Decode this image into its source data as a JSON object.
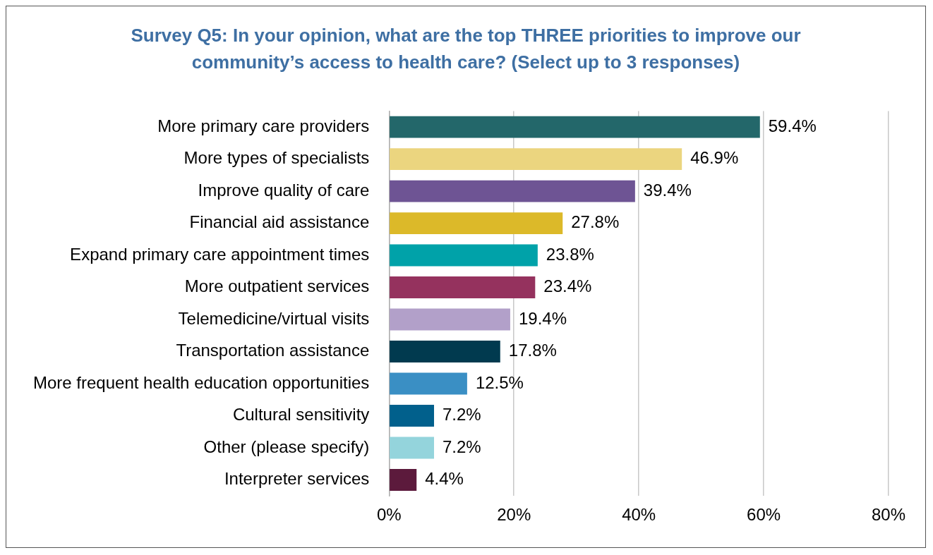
{
  "chart_data": {
    "type": "bar",
    "orientation": "horizontal",
    "title": "Survey Q5: In your opinion, what are the top THREE priorities to improve our community’s access to health care? (Select up to 3 responses)",
    "categories": [
      "More primary care providers",
      "More types of specialists",
      "Improve quality of care",
      "Financial aid assistance",
      "Expand primary care appointment times",
      "More outpatient services",
      "Telemedicine/virtual visits",
      "Transportation assistance",
      "More frequent health education opportunities",
      "Cultural sensitivity",
      "Other (please specify)",
      "Interpreter services"
    ],
    "values": [
      59.4,
      46.9,
      39.4,
      27.8,
      23.8,
      23.4,
      19.4,
      17.8,
      12.5,
      7.2,
      7.2,
      4.4
    ],
    "value_labels": [
      "59.4%",
      "46.9%",
      "39.4%",
      "27.8%",
      "23.8%",
      "23.4%",
      "19.4%",
      "17.8%",
      "12.5%",
      "7.2%",
      "7.2%",
      "4.4%"
    ],
    "colors": [
      "#23676a",
      "#ebd57f",
      "#6e5494",
      "#dcb929",
      "#00a2a9",
      "#95325e",
      "#b2a0c9",
      "#013a4f",
      "#3a8fc4",
      "#01608c",
      "#94d4dc",
      "#5c1a3c"
    ],
    "xlim": [
      0,
      80
    ],
    "xticks": [
      {
        "value": 0,
        "label": "0%"
      },
      {
        "value": 20,
        "label": "20%"
      },
      {
        "value": 40,
        "label": "40%"
      },
      {
        "value": 60,
        "label": "60%"
      },
      {
        "value": 80,
        "label": "80%"
      }
    ],
    "grid": "x",
    "legend": false
  }
}
